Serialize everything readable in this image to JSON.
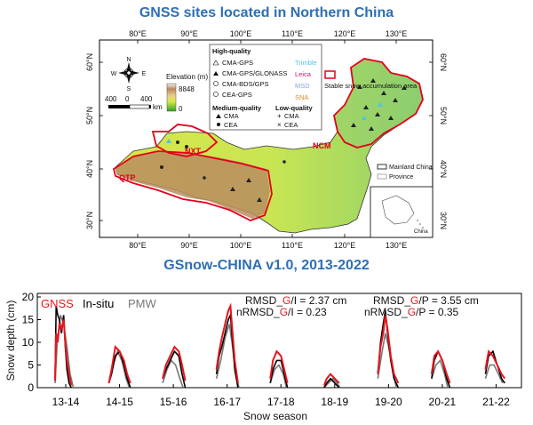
{
  "map": {
    "title": "GNSS sites located in Northern China",
    "lon_ticks": [
      "80°E",
      "90°E",
      "100°E",
      "110°E",
      "120°E",
      "130°E"
    ],
    "lat_ticks": [
      "60°N",
      "50°N",
      "40°N",
      "30°N"
    ],
    "compass": {
      "n": "N",
      "s": "S",
      "e": "E",
      "w": "W"
    },
    "scalebar": {
      "labels": [
        "400",
        "0",
        "400"
      ],
      "unit": "km"
    },
    "elevation": {
      "title": "Elevation (m)",
      "max": "8848",
      "min": "0"
    },
    "regions": [
      "NXT",
      "QTP",
      "NCM"
    ],
    "legend": {
      "high_title": "High-quality",
      "high_items": [
        "CMA-GPS",
        "CMA-GPS/GLONASS",
        "CMA-BDS/GPS",
        "CEA-GPS"
      ],
      "receivers": [
        {
          "label": "Trimble",
          "color": "#4fc3e8"
        },
        {
          "label": "Leica",
          "color": "#c0187a"
        },
        {
          "label": "MSD",
          "color": "#7fa8e0"
        },
        {
          "label": "SNA",
          "color": "#e08a1c"
        }
      ],
      "medium_title": "Medium-quality",
      "medium_items": [
        "CMA",
        "CEA"
      ],
      "low_title": "Low-quality",
      "low_items": [
        "CMA",
        "CEA"
      ],
      "snow_area": "Stable snow accumulation area"
    },
    "boundary_legend": [
      "Mainland China",
      "Province"
    ],
    "inset_label": "China",
    "colors": {
      "snow_area": "#e3001b",
      "title": "#2e6fb5"
    }
  },
  "chart": {
    "title": "GSnow-CHINA v1.0, 2013-2022",
    "legend": [
      {
        "label": "GNSS",
        "color": "#e8141c"
      },
      {
        "label": "In-situ",
        "color": "#000000"
      },
      {
        "label": "PMW",
        "color": "#777777"
      }
    ],
    "stats": [
      {
        "prefix": "RMSD_",
        "hl": "G",
        "suffix": "/I = 2.37 cm"
      },
      {
        "prefix": "nRMSD_",
        "hl": "G",
        "suffix": "/I = 0.23"
      },
      {
        "prefix": "RMSD_",
        "hl": "G",
        "suffix": "/P = 3.55 cm"
      },
      {
        "prefix": "nRMSD_",
        "hl": "G",
        "suffix": "/P = 0.35"
      }
    ]
  },
  "chart_data": {
    "type": "line",
    "title": "GSnow-CHINA v1.0, 2013-2022",
    "xlabel": "Snow season",
    "ylabel": "Snow depth (cm)",
    "ylim": [
      0,
      20
    ],
    "y_ticks": [
      0,
      5,
      10,
      15,
      20
    ],
    "categories": [
      "13-14",
      "14-15",
      "15-16",
      "16-17",
      "17-18",
      "18-19",
      "19-20",
      "20-21",
      "21-22"
    ],
    "series": [
      {
        "name": "GNSS",
        "color": "#e8141c",
        "values": [
          [
            0.0,
            1.5
          ],
          [
            0.02,
            12
          ],
          [
            0.05,
            10
          ],
          [
            0.08,
            14
          ],
          [
            0.12,
            13
          ],
          [
            0.16,
            15
          ],
          [
            0.19,
            10
          ],
          [
            0.22,
            6
          ],
          [
            0.26,
            3
          ],
          [
            0.3,
            0.5
          ],
          [
            1.0,
            1
          ],
          [
            1.05,
            4
          ],
          [
            1.12,
            9
          ],
          [
            1.2,
            8
          ],
          [
            1.28,
            6
          ],
          [
            1.34,
            3
          ],
          [
            1.4,
            1
          ],
          [
            2.0,
            2
          ],
          [
            2.06,
            5
          ],
          [
            2.14,
            7
          ],
          [
            2.22,
            9
          ],
          [
            2.3,
            8
          ],
          [
            2.36,
            5
          ],
          [
            2.42,
            1.5
          ],
          [
            3.0,
            4
          ],
          [
            3.05,
            8
          ],
          [
            3.1,
            11
          ],
          [
            3.16,
            14
          ],
          [
            3.22,
            17
          ],
          [
            3.26,
            18
          ],
          [
            3.3,
            12
          ],
          [
            3.34,
            6
          ],
          [
            3.4,
            1
          ],
          [
            4.0,
            2
          ],
          [
            4.05,
            6
          ],
          [
            4.12,
            8
          ],
          [
            4.2,
            7
          ],
          [
            4.26,
            4
          ],
          [
            4.32,
            1
          ],
          [
            5.0,
            0.5
          ],
          [
            5.05,
            2
          ],
          [
            5.12,
            3
          ],
          [
            5.2,
            2
          ],
          [
            5.28,
            1
          ],
          [
            6.0,
            3
          ],
          [
            6.05,
            9
          ],
          [
            6.1,
            12
          ],
          [
            6.14,
            16
          ],
          [
            6.18,
            13
          ],
          [
            6.24,
            7
          ],
          [
            6.3,
            3
          ],
          [
            6.38,
            1
          ],
          [
            7.0,
            3
          ],
          [
            7.05,
            7
          ],
          [
            7.12,
            8
          ],
          [
            7.2,
            6
          ],
          [
            7.28,
            3
          ],
          [
            7.34,
            1
          ],
          [
            8.0,
            4
          ],
          [
            8.06,
            8
          ],
          [
            8.14,
            7
          ],
          [
            8.22,
            5
          ],
          [
            8.3,
            3
          ],
          [
            8.36,
            2
          ]
        ]
      },
      {
        "name": "In-situ",
        "color": "#000000",
        "values": [
          [
            0.0,
            2
          ],
          [
            0.02,
            18
          ],
          [
            0.05,
            16
          ],
          [
            0.08,
            15
          ],
          [
            0.12,
            12
          ],
          [
            0.16,
            16
          ],
          [
            0.19,
            9
          ],
          [
            0.22,
            4
          ],
          [
            0.26,
            1
          ],
          [
            0.3,
            0
          ],
          [
            1.0,
            1
          ],
          [
            1.05,
            3
          ],
          [
            1.12,
            7
          ],
          [
            1.2,
            8
          ],
          [
            1.28,
            5
          ],
          [
            1.34,
            2
          ],
          [
            1.4,
            0
          ],
          [
            2.0,
            2
          ],
          [
            2.06,
            4
          ],
          [
            2.14,
            6
          ],
          [
            2.22,
            8
          ],
          [
            2.3,
            7
          ],
          [
            2.36,
            3
          ],
          [
            2.42,
            0
          ],
          [
            3.0,
            3
          ],
          [
            3.05,
            7
          ],
          [
            3.1,
            9
          ],
          [
            3.16,
            12
          ],
          [
            3.22,
            15
          ],
          [
            3.26,
            16
          ],
          [
            3.3,
            10
          ],
          [
            3.34,
            4
          ],
          [
            3.4,
            0
          ],
          [
            4.0,
            1
          ],
          [
            4.05,
            4
          ],
          [
            4.12,
            6
          ],
          [
            4.2,
            6
          ],
          [
            4.26,
            3
          ],
          [
            4.32,
            0
          ],
          [
            5.0,
            0
          ],
          [
            5.05,
            1
          ],
          [
            5.12,
            2
          ],
          [
            5.2,
            1
          ],
          [
            5.28,
            0
          ],
          [
            6.0,
            3
          ],
          [
            6.05,
            10
          ],
          [
            6.1,
            14
          ],
          [
            6.14,
            17
          ],
          [
            6.18,
            12
          ],
          [
            6.24,
            6
          ],
          [
            6.3,
            2
          ],
          [
            6.38,
            0
          ],
          [
            7.0,
            2
          ],
          [
            7.05,
            6
          ],
          [
            7.12,
            8
          ],
          [
            7.2,
            6
          ],
          [
            7.28,
            2
          ],
          [
            7.34,
            0
          ],
          [
            8.0,
            3
          ],
          [
            8.06,
            7
          ],
          [
            8.14,
            8
          ],
          [
            8.22,
            5
          ],
          [
            8.3,
            2
          ],
          [
            8.36,
            1
          ]
        ]
      },
      {
        "name": "PMW",
        "color": "#777777",
        "values": [
          [
            0.0,
            1
          ],
          [
            0.04,
            10
          ],
          [
            0.1,
            16
          ],
          [
            0.16,
            14
          ],
          [
            0.22,
            9
          ],
          [
            0.28,
            3
          ],
          [
            0.34,
            0
          ],
          [
            1.0,
            1
          ],
          [
            1.08,
            5
          ],
          [
            1.16,
            8
          ],
          [
            1.24,
            6
          ],
          [
            1.32,
            2
          ],
          [
            1.38,
            0
          ],
          [
            2.0,
            1
          ],
          [
            2.08,
            4
          ],
          [
            2.16,
            6
          ],
          [
            2.24,
            5
          ],
          [
            2.32,
            2
          ],
          [
            2.38,
            0
          ],
          [
            3.0,
            2
          ],
          [
            3.08,
            6
          ],
          [
            3.16,
            11
          ],
          [
            3.24,
            14
          ],
          [
            3.3,
            9
          ],
          [
            3.36,
            3
          ],
          [
            3.42,
            0
          ],
          [
            4.0,
            1
          ],
          [
            4.08,
            4
          ],
          [
            4.16,
            5
          ],
          [
            4.24,
            3
          ],
          [
            4.3,
            0
          ],
          [
            5.0,
            0
          ],
          [
            5.08,
            1
          ],
          [
            5.16,
            2
          ],
          [
            5.24,
            1
          ],
          [
            5.3,
            0
          ],
          [
            6.0,
            2
          ],
          [
            6.08,
            8
          ],
          [
            6.14,
            12
          ],
          [
            6.2,
            9
          ],
          [
            6.28,
            4
          ],
          [
            6.34,
            0
          ],
          [
            7.0,
            2
          ],
          [
            7.08,
            5
          ],
          [
            7.16,
            6
          ],
          [
            7.24,
            3
          ],
          [
            7.3,
            0
          ],
          [
            8.0,
            2
          ],
          [
            8.08,
            5
          ],
          [
            8.16,
            5
          ],
          [
            8.24,
            3
          ],
          [
            8.32,
            1
          ]
        ]
      }
    ]
  }
}
